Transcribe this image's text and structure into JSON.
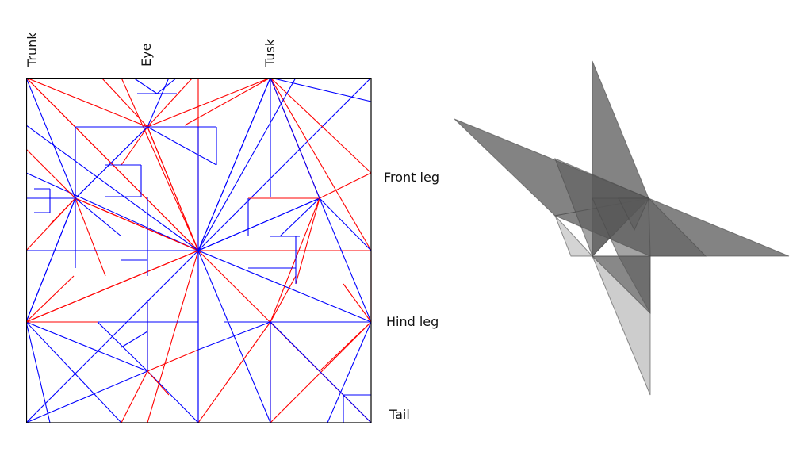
{
  "labels": {
    "top": [
      "Trunk",
      "Eye",
      "Tusk"
    ],
    "right": [
      "Front leg",
      "Hind leg",
      "Tail"
    ]
  },
  "colors": {
    "mountain": "#ff0000",
    "valley": "#0000ff",
    "border": "#000000",
    "folded_dark": "#5a5a5a",
    "folded_light": "#b8b8b8"
  }
}
